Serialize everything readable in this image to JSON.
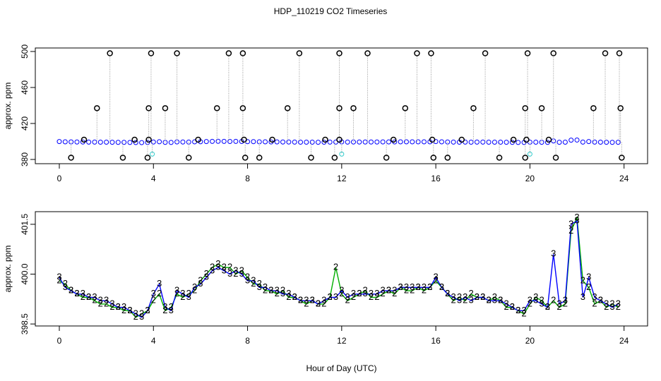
{
  "title": "HDP_110219  CO2 Timeseries",
  "chart_data": [
    {
      "type": "scatter",
      "ylabel": "approx. ppm",
      "xlim": [
        -1.02,
        25
      ],
      "xticks": [
        0,
        4,
        8,
        12,
        16,
        20,
        24
      ],
      "ylim": [
        375.3,
        503.9
      ],
      "yticks": [
        380,
        420,
        460,
        500
      ],
      "x": [
        0,
        0.25,
        0.5,
        0.75,
        1,
        1.25,
        1.5,
        1.75,
        2,
        2.25,
        2.5,
        2.75,
        3,
        3.25,
        3.5,
        3.75,
        4,
        4.25,
        4.5,
        4.75,
        5,
        5.25,
        5.5,
        5.75,
        6,
        6.25,
        6.5,
        6.75,
        7,
        7.25,
        7.5,
        7.75,
        8,
        8.25,
        8.5,
        8.75,
        9,
        9.25,
        9.5,
        9.75,
        10,
        10.25,
        10.5,
        10.75,
        11,
        11.25,
        11.5,
        11.75,
        12,
        12.25,
        12.5,
        12.75,
        13,
        13.25,
        13.5,
        13.75,
        14,
        14.25,
        14.5,
        14.75,
        15,
        15.25,
        15.5,
        15.75,
        16,
        16.25,
        16.5,
        16.75,
        17,
        17.25,
        17.5,
        17.75,
        18,
        18.25,
        18.5,
        18.75,
        19,
        19.25,
        19.5,
        19.75,
        20,
        20.25,
        20.5,
        20.75,
        21,
        21.25,
        21.5,
        21.75,
        22,
        22.25,
        22.5,
        22.75,
        23,
        23.25,
        23.5,
        23.75
      ],
      "series": [
        {
          "color": "#0000ff",
          "values": [
            399.9,
            399.6,
            399.5,
            399.4,
            399.4,
            399.3,
            399.3,
            399.2,
            399.2,
            399.1,
            399.0,
            399.0,
            398.9,
            398.8,
            398.7,
            398.9,
            399.4,
            399.7,
            399.0,
            398.9,
            399.5,
            399.4,
            399.3,
            399.6,
            399.7,
            399.9,
            400.1,
            400.2,
            400.1,
            400.0,
            400.1,
            400.0,
            399.8,
            399.8,
            399.6,
            399.6,
            399.5,
            399.5,
            399.4,
            399.4,
            399.3,
            399.2,
            399.2,
            399.2,
            399.1,
            399.2,
            399.3,
            399.3,
            399.5,
            399.3,
            399.4,
            399.4,
            399.4,
            399.4,
            399.4,
            399.5,
            399.5,
            399.5,
            399.6,
            399.6,
            399.6,
            399.6,
            399.6,
            399.6,
            399.9,
            399.6,
            399.4,
            399.3,
            399.2,
            399.3,
            399.2,
            399.3,
            399.3,
            399.2,
            399.2,
            399.2,
            399.1,
            399.0,
            398.9,
            398.9,
            399.2,
            399.2,
            399.1,
            399.0,
            400.6,
            399.1,
            399.2,
            401.5,
            401.6,
            399.3,
            399.9,
            399.3,
            399.2,
            399.1,
            399.0,
            399.1
          ]
        },
        {
          "color": "#000000",
          "x": [
            2.15,
            3.9,
            5.0,
            7.2,
            7.8,
            10.2,
            11.9,
            13.1,
            15.2,
            15.8,
            18.1,
            19.9,
            21.0,
            23.2,
            23.8,
            1.6,
            3.8,
            4.5,
            6.7,
            7.8,
            9.7,
            11.9,
            12.5,
            14.7,
            17.6,
            19.8,
            20.5,
            22.7,
            23.85,
            1.05,
            3.2,
            3.8,
            5.9,
            7.85,
            9.05,
            11.3,
            11.9,
            14.2,
            15.85,
            17.1,
            19.3,
            19.85,
            20.8,
            0.5,
            2.7,
            3.75,
            5.5,
            7.9,
            8.5,
            10.7,
            11.7,
            13.9,
            15.9,
            16.5,
            18.7,
            19.8,
            21.1,
            23.9
          ],
          "values": [
            498,
            498,
            498,
            498,
            498,
            498,
            498,
            498,
            498,
            498,
            498,
            498,
            498,
            498,
            498,
            437,
            437,
            437,
            437,
            437,
            437,
            437,
            437,
            437,
            437,
            437,
            437,
            437,
            437,
            402,
            402,
            402,
            402,
            402,
            402,
            402,
            402,
            402,
            402,
            402,
            402,
            402,
            402,
            382,
            382,
            382,
            382,
            382,
            382,
            382,
            382,
            382,
            382,
            382,
            382,
            382,
            382,
            382
          ]
        },
        {
          "color": "#33cccc",
          "x": [
            3.95,
            12.0,
            20.0
          ],
          "values": [
            386,
            386,
            386
          ]
        }
      ]
    },
    {
      "type": "line",
      "ylabel": "approx. ppm",
      "xlabel": "Hour of Day (UTC)",
      "xlim": [
        -1.02,
        25
      ],
      "xticks": [
        0,
        4,
        8,
        12,
        16,
        20,
        24
      ],
      "ylim": [
        398.44,
        401.88
      ],
      "yticks": [
        398.5,
        {
          "value": 400,
          "label": "400.0"
        },
        401.5
      ],
      "x": [
        0,
        0.25,
        0.5,
        0.75,
        1,
        1.25,
        1.5,
        1.75,
        2,
        2.25,
        2.5,
        2.75,
        3,
        3.25,
        3.5,
        3.75,
        4,
        4.25,
        4.5,
        4.75,
        5,
        5.25,
        5.5,
        5.75,
        6,
        6.25,
        6.5,
        6.75,
        7,
        7.25,
        7.5,
        7.75,
        8,
        8.25,
        8.5,
        8.75,
        9,
        9.25,
        9.5,
        9.75,
        10,
        10.25,
        10.5,
        10.75,
        11,
        11.25,
        11.5,
        11.75,
        12,
        12.25,
        12.5,
        12.75,
        13,
        13.25,
        13.5,
        13.75,
        14,
        14.25,
        14.5,
        14.75,
        15,
        15.25,
        15.5,
        15.75,
        16,
        16.25,
        16.5,
        16.75,
        17,
        17.25,
        17.5,
        17.75,
        18,
        18.25,
        18.5,
        18.75,
        19,
        19.25,
        19.5,
        19.75,
        20,
        20.25,
        20.5,
        20.75,
        21,
        21.25,
        21.5,
        21.75,
        22,
        22.25,
        22.5,
        22.75,
        23,
        23.25,
        23.5,
        23.75
      ],
      "series": [
        {
          "marker": "2",
          "color": "#00b000",
          "values": [
            399.8,
            399.7,
            399.5,
            399.4,
            399.3,
            399.3,
            399.2,
            399.1,
            399.1,
            399.0,
            399.0,
            398.9,
            398.9,
            398.7,
            398.8,
            398.9,
            399.2,
            399.4,
            398.9,
            399.0,
            399.4,
            399.3,
            399.4,
            399.5,
            399.8,
            400.0,
            400.2,
            400.3,
            400.2,
            400.2,
            400.0,
            400.1,
            399.9,
            399.7,
            399.7,
            399.5,
            399.5,
            399.4,
            399.5,
            399.3,
            399.3,
            399.2,
            399.1,
            399.2,
            399.1,
            399.1,
            399.3,
            400.2,
            399.4,
            399.2,
            399.3,
            399.4,
            399.5,
            399.3,
            399.3,
            399.4,
            399.5,
            399.4,
            399.6,
            399.5,
            399.5,
            399.6,
            399.5,
            399.6,
            399.8,
            399.6,
            399.4,
            399.2,
            399.3,
            399.2,
            399.4,
            399.3,
            399.3,
            399.2,
            399.3,
            399.2,
            399.0,
            399.0,
            398.9,
            398.8,
            399.1,
            399.3,
            399.2,
            399.0,
            399.2,
            399.0,
            399.1,
            401.3,
            401.7,
            399.8,
            399.6,
            399.1,
            399.2,
            399.0,
            399.1,
            399.0
          ]
        },
        {
          "marker": "3",
          "color": "#0000ff",
          "values": [
            399.9,
            399.6,
            399.5,
            399.4,
            399.4,
            399.3,
            399.3,
            399.2,
            399.2,
            399.1,
            399.0,
            399.0,
            398.9,
            398.8,
            398.7,
            398.9,
            399.4,
            399.7,
            399.0,
            398.9,
            399.5,
            399.4,
            399.3,
            399.6,
            399.7,
            399.9,
            400.1,
            400.2,
            400.1,
            400.0,
            400.1,
            400.0,
            399.8,
            399.8,
            399.6,
            399.6,
            399.5,
            399.5,
            399.4,
            399.4,
            399.3,
            399.2,
            399.2,
            399.2,
            399.1,
            399.2,
            399.3,
            399.3,
            399.5,
            399.3,
            399.4,
            399.4,
            399.4,
            399.4,
            399.4,
            399.5,
            399.5,
            399.5,
            399.6,
            399.6,
            399.6,
            399.6,
            399.6,
            399.6,
            399.9,
            399.6,
            399.4,
            399.3,
            399.2,
            399.3,
            399.2,
            399.3,
            399.3,
            399.2,
            399.2,
            399.2,
            399.1,
            399.0,
            398.9,
            398.9,
            399.2,
            399.2,
            399.1,
            399.0,
            400.6,
            399.1,
            399.2,
            401.5,
            401.6,
            399.3,
            399.9,
            399.3,
            399.2,
            399.1,
            399.0,
            399.1
          ]
        }
      ]
    }
  ]
}
